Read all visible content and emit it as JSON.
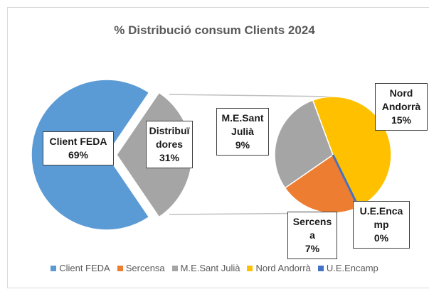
{
  "chart_data": {
    "type": "pie-of-pie",
    "title": "% Distribució consum Clients 2024",
    "primary": {
      "categories": [
        "Client FEDA",
        "Distribuïdores"
      ],
      "values": [
        69,
        31
      ],
      "value_labels": [
        "69%",
        "31%"
      ],
      "colors": [
        "#5B9BD5",
        "#A5A5A5"
      ]
    },
    "secondary": {
      "categories": [
        "Sercensa",
        "M.E.Sant Julià",
        "Nord Andorrà",
        "U.E.Encamp"
      ],
      "values": [
        7,
        9,
        15,
        0
      ],
      "value_labels": [
        "7%",
        "9%",
        "15%",
        "0%"
      ],
      "colors": [
        "#ED7D31",
        "#A5A5A5",
        "#FFC000",
        "#4472C4"
      ]
    },
    "legend": true
  }
}
